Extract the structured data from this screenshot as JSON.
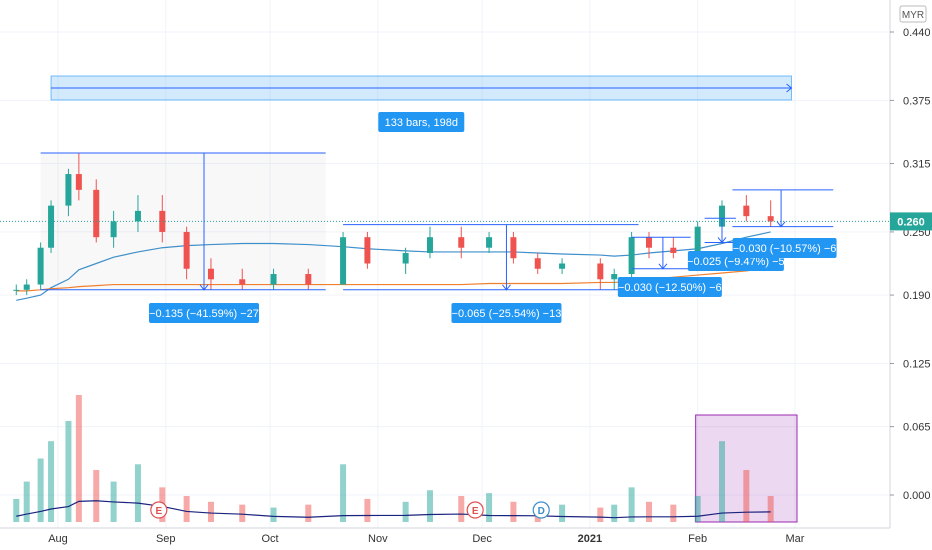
{
  "chart_data": {
    "type": "candlestick",
    "currency": "MYR",
    "last_price": "0.260",
    "y_axis_ticks": [
      "0.440",
      "0.375",
      "0.315",
      "0.250",
      "0.190",
      "0.125",
      "0.065",
      "0.000"
    ],
    "x_axis_ticks": [
      {
        "label": "Aug",
        "bold": false
      },
      {
        "label": "Sep",
        "bold": false
      },
      {
        "label": "Oct",
        "bold": false
      },
      {
        "label": "Nov",
        "bold": false
      },
      {
        "label": "Dec",
        "bold": false
      },
      {
        "label": "2021",
        "bold": true
      },
      {
        "label": "Feb",
        "bold": false
      },
      {
        "label": "Mar",
        "bold": false
      }
    ],
    "candles": [
      {
        "date": "2020-07-20",
        "o": 0.195,
        "h": 0.2,
        "l": 0.19,
        "c": 0.195
      },
      {
        "date": "2020-07-23",
        "o": 0.195,
        "h": 0.205,
        "l": 0.19,
        "c": 0.2
      },
      {
        "date": "2020-07-27",
        "o": 0.2,
        "h": 0.24,
        "l": 0.195,
        "c": 0.235
      },
      {
        "date": "2020-07-30",
        "o": 0.235,
        "h": 0.28,
        "l": 0.23,
        "c": 0.275
      },
      {
        "date": "2020-08-04",
        "o": 0.275,
        "h": 0.31,
        "l": 0.265,
        "c": 0.305
      },
      {
        "date": "2020-08-07",
        "o": 0.305,
        "h": 0.325,
        "l": 0.28,
        "c": 0.29
      },
      {
        "date": "2020-08-12",
        "o": 0.29,
        "h": 0.3,
        "l": 0.24,
        "c": 0.245
      },
      {
        "date": "2020-08-17",
        "o": 0.245,
        "h": 0.27,
        "l": 0.235,
        "c": 0.26
      },
      {
        "date": "2020-08-24",
        "o": 0.26,
        "h": 0.285,
        "l": 0.25,
        "c": 0.27
      },
      {
        "date": "2020-08-31",
        "o": 0.27,
        "h": 0.285,
        "l": 0.24,
        "c": 0.25
      },
      {
        "date": "2020-09-07",
        "o": 0.25,
        "h": 0.255,
        "l": 0.205,
        "c": 0.215
      },
      {
        "date": "2020-09-14",
        "o": 0.215,
        "h": 0.225,
        "l": 0.195,
        "c": 0.205
      },
      {
        "date": "2020-09-23",
        "o": 0.205,
        "h": 0.215,
        "l": 0.195,
        "c": 0.2
      },
      {
        "date": "2020-10-02",
        "o": 0.2,
        "h": 0.215,
        "l": 0.195,
        "c": 0.21
      },
      {
        "date": "2020-10-12",
        "o": 0.21,
        "h": 0.215,
        "l": 0.195,
        "c": 0.2
      },
      {
        "date": "2020-10-22",
        "o": 0.2,
        "h": 0.25,
        "l": 0.2,
        "c": 0.245
      },
      {
        "date": "2020-10-29",
        "o": 0.245,
        "h": 0.25,
        "l": 0.215,
        "c": 0.22
      },
      {
        "date": "2020-11-09",
        "o": 0.22,
        "h": 0.235,
        "l": 0.21,
        "c": 0.23
      },
      {
        "date": "2020-11-16",
        "o": 0.23,
        "h": 0.255,
        "l": 0.225,
        "c": 0.245
      },
      {
        "date": "2020-11-25",
        "o": 0.245,
        "h": 0.255,
        "l": 0.225,
        "c": 0.235
      },
      {
        "date": "2020-12-03",
        "o": 0.235,
        "h": 0.25,
        "l": 0.23,
        "c": 0.245
      },
      {
        "date": "2020-12-10",
        "o": 0.245,
        "h": 0.25,
        "l": 0.22,
        "c": 0.225
      },
      {
        "date": "2020-12-17",
        "o": 0.225,
        "h": 0.23,
        "l": 0.21,
        "c": 0.215
      },
      {
        "date": "2020-12-24",
        "o": 0.215,
        "h": 0.225,
        "l": 0.21,
        "c": 0.22
      },
      {
        "date": "2021-01-04",
        "o": 0.22,
        "h": 0.225,
        "l": 0.195,
        "c": 0.205
      },
      {
        "date": "2021-01-08",
        "o": 0.205,
        "h": 0.215,
        "l": 0.195,
        "c": 0.21
      },
      {
        "date": "2021-01-13",
        "o": 0.21,
        "h": 0.25,
        "l": 0.205,
        "c": 0.245
      },
      {
        "date": "2021-01-18",
        "o": 0.245,
        "h": 0.25,
        "l": 0.225,
        "c": 0.235
      },
      {
        "date": "2021-01-25",
        "o": 0.235,
        "h": 0.245,
        "l": 0.225,
        "c": 0.23
      },
      {
        "date": "2021-02-01",
        "o": 0.23,
        "h": 0.26,
        "l": 0.225,
        "c": 0.255
      },
      {
        "date": "2021-02-08",
        "o": 0.255,
        "h": 0.28,
        "l": 0.245,
        "c": 0.275
      },
      {
        "date": "2021-02-15",
        "o": 0.275,
        "h": 0.285,
        "l": 0.26,
        "c": 0.265
      },
      {
        "date": "2021-02-22",
        "o": 0.265,
        "h": 0.28,
        "l": 0.255,
        "c": 0.26
      }
    ],
    "volume": [
      8,
      14,
      22,
      28,
      35,
      44,
      18,
      14,
      20,
      12,
      9,
      7,
      6,
      5,
      6,
      20,
      8,
      7,
      11,
      9,
      10,
      7,
      6,
      6,
      5,
      6,
      12,
      7,
      6,
      9,
      28,
      18,
      9
    ],
    "moving_averages": [
      {
        "color": "#3f8fc9",
        "values": [
          0.185,
          0.187,
          0.19,
          0.197,
          0.205,
          0.214,
          0.22,
          0.226,
          0.231,
          0.235,
          0.237,
          0.238,
          0.239,
          0.239,
          0.238,
          0.236,
          0.234,
          0.232,
          0.231,
          0.231,
          0.231,
          0.231,
          0.23,
          0.229,
          0.228,
          0.227,
          0.228,
          0.23,
          0.232,
          0.234,
          0.239,
          0.245,
          0.25
        ]
      },
      {
        "color": "#f0802e",
        "values": [
          0.194,
          0.194,
          0.195,
          0.196,
          0.197,
          0.198,
          0.199,
          0.2,
          0.2,
          0.2,
          0.2,
          0.2,
          0.2,
          0.2,
          0.2,
          0.2,
          0.2,
          0.2,
          0.2,
          0.2,
          0.201,
          0.201,
          0.201,
          0.201,
          0.202,
          0.202,
          0.203,
          0.205,
          0.207,
          0.209,
          0.211,
          0.213,
          0.216
        ]
      }
    ],
    "volume_ma_color": "#1a237e",
    "measurements": [
      {
        "label": "133 bars, 198d"
      },
      {
        "label": "−0.135 (−41.59%) −27"
      },
      {
        "label": "−0.065 (−25.54%) −13"
      },
      {
        "label": "−0.030 (−12.50%) −6"
      },
      {
        "label": "−0.025 (−9.47%) −5"
      },
      {
        "label": "−0.030 (−10.57%) −6"
      }
    ],
    "events": [
      {
        "label": "E",
        "color": "#e05252"
      },
      {
        "label": "E",
        "color": "#e05252"
      },
      {
        "label": "D",
        "color": "#3f8fc9"
      }
    ],
    "colors": {
      "up": "#26a69a",
      "down": "#ef5350",
      "measure": "#2962ff",
      "label_bg": "#2196f3",
      "last_price": "#26a69a",
      "highlight": "#9c27b0"
    }
  }
}
